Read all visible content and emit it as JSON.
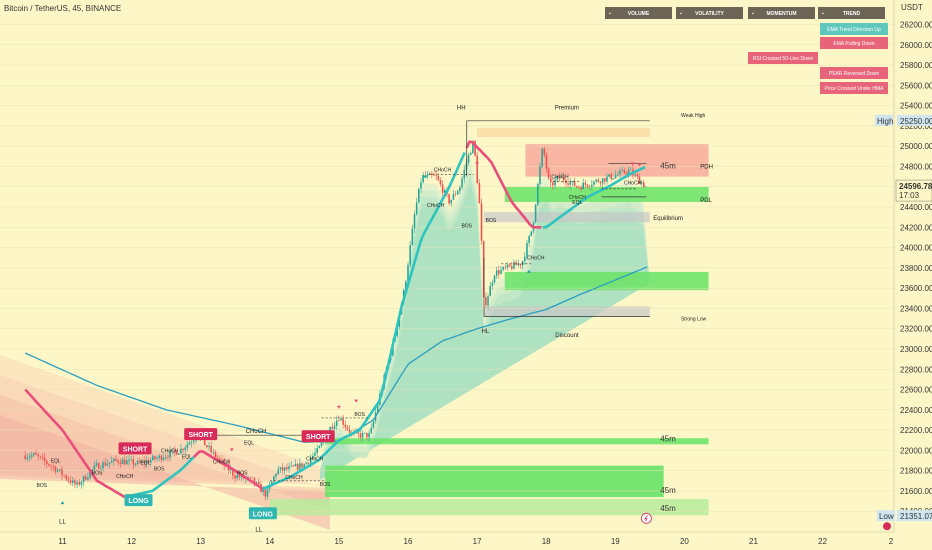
{
  "chart_data": {
    "type": "candlestick",
    "title": "Bitcoin / TetherUS, 45, BINANCE",
    "y_currency": "USDT",
    "ylim": [
      21300,
      26400
    ],
    "y_ticks": [
      "26200.00",
      "26000.00",
      "25800.00",
      "25600.00",
      "25400.00",
      "25200.00",
      "25000.00",
      "24800.00",
      "24600.00",
      "24400.00",
      "24200.00",
      "24000.00",
      "23800.00",
      "23600.00",
      "23400.00",
      "23200.00",
      "23000.00",
      "22800.00",
      "22600.00",
      "22400.00",
      "22200.00",
      "22000.00",
      "21800.00",
      "21600.00",
      "21400.00"
    ],
    "y_tick_values": [
      26200,
      26000,
      25800,
      25600,
      25400,
      25200,
      25000,
      24800,
      24600,
      24400,
      24200,
      24000,
      23800,
      23600,
      23400,
      23200,
      23000,
      22800,
      22600,
      22400,
      22200,
      22000,
      21800,
      21600,
      21400
    ],
    "x_ticks": [
      "11",
      "12",
      "13",
      "14",
      "15",
      "16",
      "17",
      "18",
      "19",
      "20",
      "21",
      "22",
      "2"
    ],
    "x_tick_days": [
      11,
      12,
      13,
      14,
      15,
      16,
      17,
      18,
      19,
      20,
      21,
      22,
      23
    ],
    "xlim_days": [
      10.46,
      23.0
    ],
    "price_points": [
      [
        10.6,
        21950
      ],
      [
        10.9,
        21820
      ],
      [
        11.2,
        21650
      ],
      [
        11.5,
        21850
      ],
      [
        11.8,
        21900
      ],
      [
        12.1,
        21870
      ],
      [
        12.4,
        21930
      ],
      [
        12.7,
        22000
      ],
      [
        12.95,
        22150
      ],
      [
        13.2,
        21950
      ],
      [
        13.5,
        21750
      ],
      [
        13.75,
        21700
      ],
      [
        13.95,
        21560
      ],
      [
        14.1,
        21800
      ],
      [
        14.3,
        21820
      ],
      [
        14.5,
        21860
      ],
      [
        14.7,
        22000
      ],
      [
        14.85,
        22200
      ],
      [
        15.0,
        22330
      ],
      [
        15.2,
        22150
      ],
      [
        15.45,
        22150
      ],
      [
        15.65,
        22700
      ],
      [
        15.8,
        23100
      ],
      [
        15.95,
        23600
      ],
      [
        16.1,
        24350
      ],
      [
        16.2,
        24700
      ],
      [
        16.4,
        24700
      ],
      [
        16.6,
        24450
      ],
      [
        16.75,
        24600
      ],
      [
        16.85,
        24850
      ],
      [
        16.95,
        25050
      ],
      [
        17.05,
        24300
      ],
      [
        17.1,
        23400
      ],
      [
        17.25,
        23750
      ],
      [
        17.45,
        23800
      ],
      [
        17.65,
        23850
      ],
      [
        17.8,
        24200
      ],
      [
        17.95,
        25000
      ],
      [
        18.05,
        24600
      ],
      [
        18.2,
        24700
      ],
      [
        18.45,
        24600
      ],
      [
        18.7,
        24650
      ],
      [
        18.95,
        24700
      ],
      [
        19.2,
        24760
      ],
      [
        19.45,
        24597
      ]
    ],
    "current_price": "24596.78",
    "countdown": "17:03",
    "high_label": "High",
    "high_value": "25250.00",
    "low_label": "Low",
    "low_value": "21351.07",
    "table": {
      "headers": [
        "VOLUME",
        "VOLATILITY",
        "MOMENTUM",
        "TREND"
      ],
      "signals": [
        {
          "text": "EMA Trend Direction Up",
          "color": "#5fc7bb",
          "col": 3
        },
        {
          "text": "EMA Pulling Down",
          "color": "#e8647a",
          "col": 3
        },
        {
          "text": "RSI Crossed 50-Line Down",
          "color": "#e8647a",
          "col": 2
        },
        {
          "text": "PSAR Reversed Down",
          "color": "#e8647a",
          "col": 3
        },
        {
          "text": "Price Crossed Under HMA",
          "color": "#e8647a",
          "col": 3
        }
      ]
    },
    "annotations": {
      "premium": "Premium",
      "equilibrium": "Equilibrium",
      "discount": "Discount",
      "weak_high": "Weak High",
      "strong_low": "Strong Low",
      "pdh": "PDH",
      "pdl": "PDL",
      "hh": "HH",
      "hl": "HL",
      "ll": "LL",
      "choch": "CHoCH",
      "bos": "BOS",
      "eql": "EQL",
      "tf": "45m"
    },
    "signal_tags": [
      {
        "text": "SHORT",
        "day": 12.05,
        "price": 22010,
        "color": "#d92b5a"
      },
      {
        "text": "SHORT",
        "day": 13.0,
        "price": 22150,
        "color": "#d92b5a"
      },
      {
        "text": "SHORT",
        "day": 14.7,
        "price": 22130,
        "color": "#d92b5a"
      },
      {
        "text": "LONG",
        "day": 12.1,
        "price": 21500,
        "color": "#2fb7b3"
      },
      {
        "text": "LONG",
        "day": 13.9,
        "price": 21370,
        "color": "#2fb7b3"
      }
    ],
    "colors": {
      "up": "#26a69a",
      "down": "#ef5350",
      "ema_up": "#2ec4c0",
      "ema_down": "#ea4d7a",
      "vwap": "#2a9fc2",
      "zone_green": "#6fe36b",
      "zone_red": "#f5a097",
      "header": "#6c6455"
    }
  }
}
